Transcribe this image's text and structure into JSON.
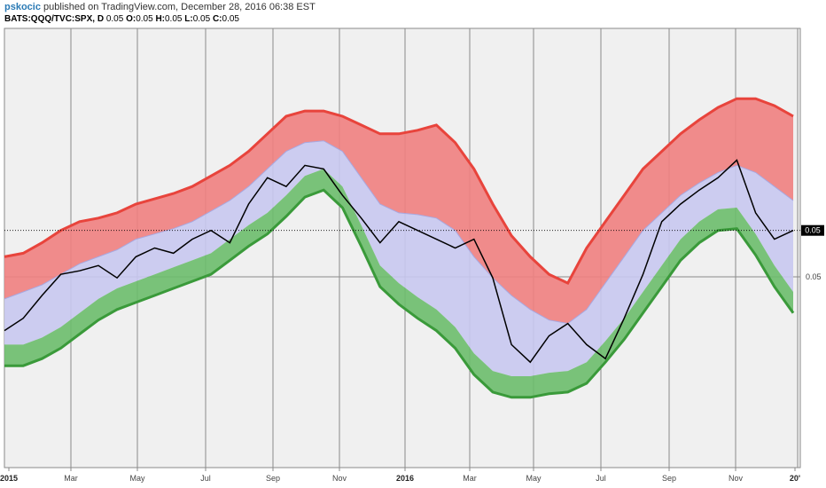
{
  "header": {
    "user": "pskocic",
    "published": "published on TradingView.com, December 28, 2016 06:38 EST",
    "symbol": "BATS:QQQ/TVC:SPX, D",
    "value": "0.05",
    "open_label": "O:",
    "open": "0.05",
    "high_label": "H:",
    "high": "0.05",
    "low_label": "L:",
    "low": "0.05",
    "close_label": "C:",
    "close": "0.05"
  },
  "colors": {
    "upper_band": "#e8443c",
    "upper_fill": "#f08080",
    "middle_fill": "#c8c8f0",
    "lower_band": "#3a9a3a",
    "lower_fill": "#6cbd6c",
    "price": "#000000",
    "grid": "#8a8a8a",
    "plot_bg": "#f0f0f0"
  },
  "chart_data": {
    "type": "line",
    "title": "",
    "xlabel": "",
    "ylabel": "",
    "x_ticks": [
      "2015",
      "Mar",
      "May",
      "Jul",
      "Sep",
      "Nov",
      "2016",
      "Mar",
      "May",
      "Jul",
      "Sep",
      "Nov",
      "20'"
    ],
    "y_ticks": [
      "0.05"
    ],
    "price_label": "0.05",
    "grid": true,
    "series": [
      {
        "values": [
          0.052,
          0.0522,
          0.0528,
          0.0535,
          0.054,
          0.0542,
          0.0545,
          0.055,
          0.0553,
          0.0556,
          0.056,
          0.0566,
          0.0572,
          0.058,
          0.059,
          0.06,
          0.0603,
          0.0603,
          0.06,
          0.0595,
          0.059,
          0.059,
          0.0592,
          0.0595,
          0.0585,
          0.057,
          0.055,
          0.0532,
          0.052,
          0.051,
          0.0505,
          0.0525,
          0.054,
          0.0555,
          0.057,
          0.058,
          0.059,
          0.0598,
          0.0605,
          0.061,
          0.061,
          0.0606,
          0.06
        ]
      },
      {
        "values": [
          0.0496,
          0.05,
          0.0504,
          0.051,
          0.0516,
          0.052,
          0.0524,
          0.053,
          0.0533,
          0.0536,
          0.054,
          0.0546,
          0.0552,
          0.056,
          0.057,
          0.058,
          0.0585,
          0.0586,
          0.058,
          0.0565,
          0.055,
          0.0545,
          0.0544,
          0.0542,
          0.0535,
          0.052,
          0.0508,
          0.0498,
          0.049,
          0.0484,
          0.0482,
          0.049,
          0.0505,
          0.052,
          0.0535,
          0.0545,
          0.0555,
          0.0562,
          0.0568,
          0.0572,
          0.0568,
          0.056,
          0.0552
        ]
      },
      {
        "values": [
          0.047,
          0.047,
          0.0474,
          0.048,
          0.0488,
          0.0496,
          0.0502,
          0.0506,
          0.051,
          0.0514,
          0.0518,
          0.0522,
          0.053,
          0.0538,
          0.0545,
          0.0555,
          0.0566,
          0.057,
          0.056,
          0.0538,
          0.0515,
          0.0505,
          0.0497,
          0.049,
          0.048,
          0.0465,
          0.0455,
          0.0452,
          0.0452,
          0.0454,
          0.0455,
          0.046,
          0.0472,
          0.0485,
          0.05,
          0.0515,
          0.053,
          0.054,
          0.0547,
          0.0548,
          0.0533,
          0.0515,
          0.05
        ]
      },
      {
        "values": [
          0.0478,
          0.0485,
          0.0498,
          0.051,
          0.0512,
          0.0515,
          0.0508,
          0.052,
          0.0525,
          0.0522,
          0.053,
          0.0535,
          0.0528,
          0.055,
          0.0565,
          0.056,
          0.0572,
          0.057,
          0.0555,
          0.0542,
          0.0528,
          0.054,
          0.0535,
          0.053,
          0.0525,
          0.053,
          0.0508,
          0.047,
          0.046,
          0.0475,
          0.0482,
          0.047,
          0.0462,
          0.0485,
          0.051,
          0.054,
          0.055,
          0.0558,
          0.0565,
          0.0575,
          0.0545,
          0.053,
          0.0535
        ]
      }
    ]
  }
}
